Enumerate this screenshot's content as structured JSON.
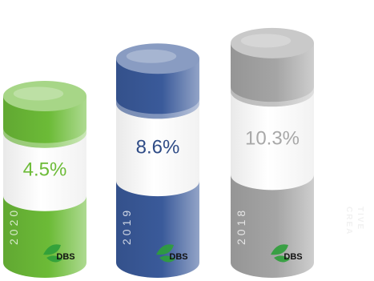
{
  "chart_data": {
    "type": "bar",
    "style": "3d-cylinder",
    "categories": [
      "2020",
      "2019",
      "2018"
    ],
    "values": [
      4.5,
      8.6,
      10.3
    ],
    "value_labels": [
      "4.5%",
      "8.6%",
      "10.3%"
    ],
    "unit": "%",
    "colors": [
      "#6cbb37",
      "#3a5a9a",
      "#a5a5a5"
    ],
    "value_label_colors": [
      "#6cbb37",
      "#2e4b86",
      "#a8a8a8"
    ],
    "badge_text": "DBS",
    "title": "",
    "xlabel": "",
    "ylabel": "",
    "grid": false,
    "legend": "none"
  },
  "watermark": {
    "line1": "CREA",
    "line2": "TIVE"
  }
}
